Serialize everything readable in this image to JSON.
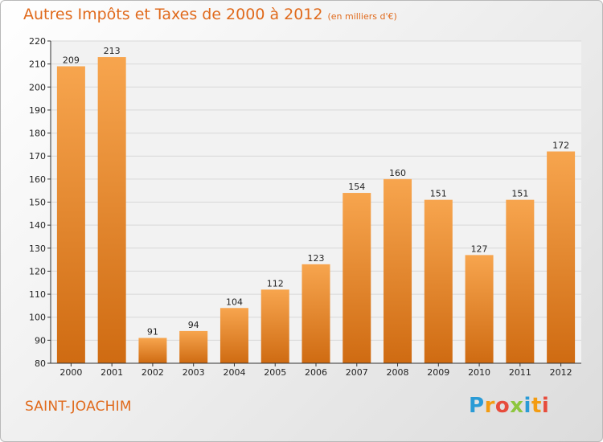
{
  "title": "Autres Impôts et Taxes de 2000 à 2012",
  "unit": "(en milliers d'€)",
  "commune": "SAINT-JOACHIM",
  "logo": {
    "letters": [
      "P",
      "r",
      "o",
      "x",
      "i",
      "t",
      "i"
    ],
    "colors": [
      "#2a9bd6",
      "#f39c12",
      "#e74c3c",
      "#8dc63f",
      "#2a9bd6",
      "#f39c12",
      "#e74c3c"
    ]
  },
  "colors": {
    "bar_top": "#f7a54e",
    "bar_bottom": "#cf6b12",
    "title": "#e06a1c"
  },
  "chart_data": {
    "type": "bar",
    "title": "Autres Impôts et Taxes de 2000 à 2012",
    "xlabel": "",
    "ylabel": "",
    "categories": [
      "2000",
      "2001",
      "2002",
      "2003",
      "2004",
      "2005",
      "2006",
      "2007",
      "2008",
      "2009",
      "2010",
      "2011",
      "2012"
    ],
    "values": [
      209,
      213,
      91,
      94,
      104,
      112,
      123,
      154,
      160,
      151,
      127,
      151,
      172
    ],
    "ylim": [
      80,
      220
    ],
    "yticks": [
      80,
      90,
      100,
      110,
      120,
      130,
      140,
      150,
      160,
      170,
      180,
      190,
      200,
      210,
      220
    ],
    "grid": true
  }
}
